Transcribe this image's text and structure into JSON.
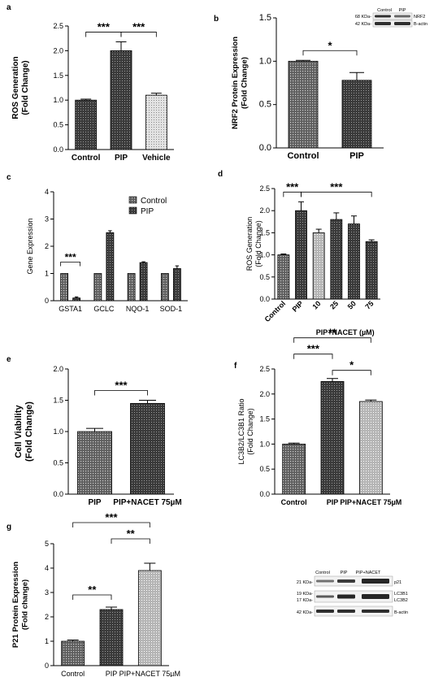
{
  "patterns": {
    "dark": "#3a3a3a",
    "mid": "#6a6a6a",
    "light": "#c8c8c8",
    "pale": "#e6e6e6"
  },
  "chart_data": [
    {
      "panel": "a",
      "type": "bar",
      "ylabel_lines": [
        "ROS Generation",
        "(Fold Change)"
      ],
      "categories": [
        "Control",
        "PIP",
        "Vehicle"
      ],
      "values": [
        1.0,
        2.0,
        1.1
      ],
      "errors": [
        0.02,
        0.18,
        0.04
      ],
      "patterns": [
        "dark",
        "dark",
        "pale"
      ],
      "ylim": [
        0,
        2.5
      ],
      "ticks": [
        "0.0",
        "0.5",
        "1.0",
        "1.5",
        "2.0",
        "2.5"
      ],
      "significance": [
        {
          "from": 0,
          "to": 1,
          "label": "***"
        },
        {
          "from": 1,
          "to": 2,
          "label": "***"
        }
      ]
    },
    {
      "panel": "b",
      "type": "bar",
      "ylabel_lines": [
        "NRF2 Protein Expression",
        "(Fold Change)"
      ],
      "categories": [
        "Control",
        "PIP"
      ],
      "values": [
        1.0,
        0.78
      ],
      "errors": [
        0.01,
        0.09
      ],
      "patterns": [
        "mid",
        "dark"
      ],
      "ylim": [
        0,
        1.5
      ],
      "ticks": [
        "0.0",
        "0.5",
        "1.0",
        "1.5"
      ],
      "significance": [
        {
          "from": 0,
          "to": 1,
          "label": "*"
        }
      ]
    },
    {
      "panel": "c",
      "type": "bar",
      "ylabel_lines": [
        "Gene Expression"
      ],
      "categories": [
        "GSTA1",
        "GCLC",
        "NQO-1",
        "SOD-1"
      ],
      "series": [
        {
          "name": "Control",
          "values": [
            1.0,
            1.0,
            1.0,
            1.0
          ],
          "errors": [
            0,
            0,
            0,
            0
          ],
          "pattern": "mid"
        },
        {
          "name": "PIP",
          "values": [
            0.1,
            2.5,
            1.4,
            1.18
          ],
          "errors": [
            0.04,
            0.07,
            0.03,
            0.1
          ],
          "pattern": "dark"
        }
      ],
      "ylim": [
        0,
        4
      ],
      "ticks": [
        "0",
        "1",
        "2",
        "3",
        "4"
      ],
      "significance": [
        {
          "category": 0,
          "label": "***"
        }
      ],
      "legend": "top-right"
    },
    {
      "panel": "d",
      "type": "bar",
      "ylabel_lines": [
        "ROS Generation",
        "(Fold Change)"
      ],
      "categories": [
        "Control",
        "PIP",
        "10",
        "25",
        "50",
        "75"
      ],
      "values": [
        1.0,
        2.0,
        1.5,
        1.8,
        1.7,
        1.3
      ],
      "errors": [
        0.02,
        0.2,
        0.08,
        0.15,
        0.18,
        0.04
      ],
      "patterns": [
        "mid",
        "dark",
        "light",
        "dark",
        "dark",
        "dark"
      ],
      "ylim": [
        0,
        2.5
      ],
      "ticks": [
        "0.0",
        "0.5",
        "1.0",
        "1.5",
        "2.0",
        "2.5"
      ],
      "rotate_labels": true,
      "xlabel": "PIP+NACET (µM)",
      "significance": [
        {
          "from": 0,
          "to": 1,
          "label": "***"
        },
        {
          "from": 1,
          "to": 5,
          "label": "***"
        }
      ]
    },
    {
      "panel": "e",
      "type": "bar",
      "ylabel_lines": [
        "Cell Viability",
        "(Fold Change)"
      ],
      "categories": [
        "PIP",
        "PIP+NACET 75µM"
      ],
      "values": [
        1.0,
        1.45
      ],
      "errors": [
        0.05,
        0.05
      ],
      "patterns": [
        "mid",
        "dark"
      ],
      "ylim": [
        0,
        2.0
      ],
      "ticks": [
        "0.0",
        "0.5",
        "1.0",
        "1.5",
        "2.0"
      ],
      "significance": [
        {
          "from": 0,
          "to": 1,
          "label": "***"
        }
      ]
    },
    {
      "panel": "f",
      "type": "bar",
      "ylabel_lines": [
        "LC3B2/LC3B1 Ratio",
        "(Fold Change)"
      ],
      "categories": [
        "Control",
        "PIP",
        "PIP+NACET 75µM"
      ],
      "values": [
        1.0,
        2.25,
        1.85
      ],
      "errors": [
        0.02,
        0.06,
        0.03
      ],
      "patterns": [
        "mid",
        "dark",
        "light"
      ],
      "ylim": [
        0,
        2.5
      ],
      "ticks": [
        "0.0",
        "0.5",
        "1.0",
        "1.5",
        "2.0",
        "2.5"
      ],
      "significance": [
        {
          "from": 0,
          "to": 2,
          "label": "**"
        },
        {
          "from": 0,
          "to": 1,
          "label": "***"
        },
        {
          "from": 1,
          "to": 2,
          "label": "*"
        }
      ]
    },
    {
      "panel": "g",
      "type": "bar",
      "ylabel_lines": [
        "P21 Protein Expression",
        "(Fold change)"
      ],
      "categories": [
        "Control",
        "PIP",
        "PIP+NACET 75µM"
      ],
      "values": [
        1.0,
        2.3,
        3.9
      ],
      "errors": [
        0.05,
        0.1,
        0.3
      ],
      "patterns": [
        "mid",
        "dark",
        "light"
      ],
      "ylim": [
        0,
        5
      ],
      "ticks": [
        "0",
        "1",
        "2",
        "3",
        "4",
        "5"
      ],
      "significance": [
        {
          "from": 0,
          "to": 2,
          "label": "***"
        },
        {
          "from": 1,
          "to": 2,
          "label": "**"
        },
        {
          "from": 0,
          "to": 1,
          "label": "**"
        }
      ]
    }
  ],
  "blots": {
    "b": {
      "lanes": [
        "Control",
        "PIP"
      ],
      "markers": [
        "68 KDa-",
        "42 KDa-"
      ],
      "proteins": [
        "NRF2",
        "B-actin"
      ]
    },
    "g": {
      "lanes": [
        "Control",
        "PIP",
        "PIP+NACET"
      ],
      "markers": [
        "21 KDa-",
        "19 KDa-",
        "17 KDa-",
        "42 KDa-"
      ],
      "proteins": [
        "p21",
        "LC3B1",
        "LC3B2",
        "B-actin"
      ]
    }
  }
}
